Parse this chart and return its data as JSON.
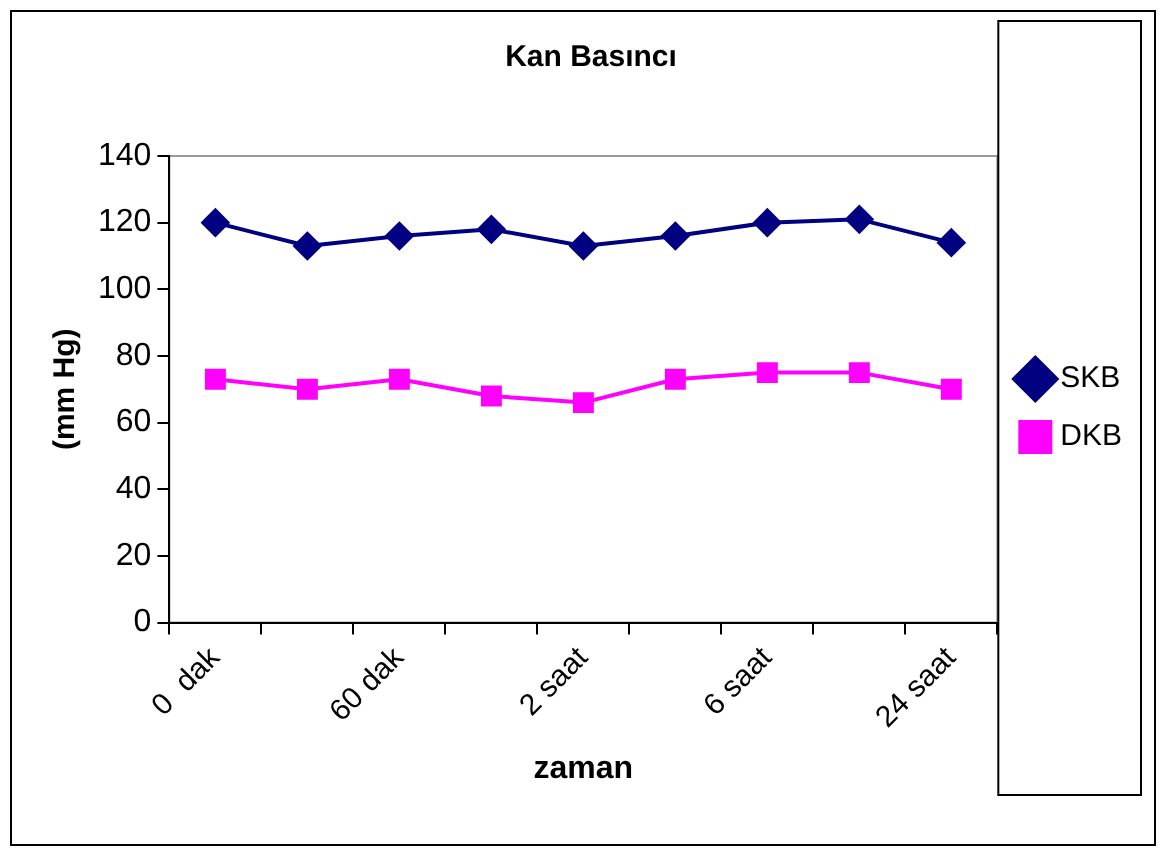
{
  "chart_data": {
    "type": "line",
    "title": "Kan Basıncı",
    "xlabel": "zaman",
    "ylabel": "(mm Hg)",
    "categories": [
      "0  dak",
      null,
      "60 dak",
      null,
      "2 saat",
      null,
      "6 saat",
      null,
      "24 saat"
    ],
    "series": [
      {
        "name": "SKB",
        "color": "#000080",
        "marker": "diamond",
        "values": [
          120,
          113,
          116,
          118,
          113,
          116,
          120,
          121,
          114
        ]
      },
      {
        "name": "DKB",
        "color": "#ff00ff",
        "marker": "square",
        "values": [
          73,
          70,
          73,
          68,
          66,
          73,
          75,
          75,
          70
        ]
      }
    ],
    "ylim": [
      0,
      140
    ],
    "yticks": [
      0,
      20,
      40,
      60,
      80,
      100,
      120,
      140
    ],
    "grid": false,
    "legend": "right",
    "line_style": "solid"
  }
}
